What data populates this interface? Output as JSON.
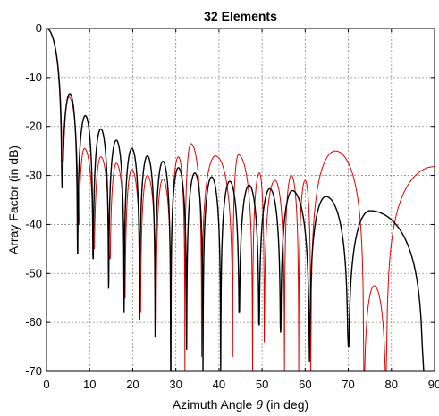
{
  "chart_data": {
    "type": "line",
    "title": "32 Elements",
    "xlabel_prefix": "Azimuth Angle ",
    "xlabel_symbol": "θ",
    "xlabel_suffix": " (in deg)",
    "ylabel": "Array Factor (in dB)",
    "xlim": [
      0,
      90
    ],
    "ylim": [
      -70,
      0
    ],
    "xticks": [
      "0",
      "10",
      "20",
      "30",
      "40",
      "50",
      "60",
      "70",
      "80",
      "90"
    ],
    "yticks": [
      "0",
      "-10",
      "-20",
      "-30",
      "-40",
      "-50",
      "-60",
      "-70"
    ],
    "grid": true,
    "series": [
      {
        "color": "#000000",
        "peaks": [
          [
            0,
            0
          ],
          [
            5.4,
            -13.3
          ],
          [
            9.0,
            -17.8
          ],
          [
            12.6,
            -20.5
          ],
          [
            16.2,
            -22.8
          ],
          [
            19.8,
            -24.5
          ],
          [
            23.4,
            -26.0
          ],
          [
            27.0,
            -27.1
          ],
          [
            30.6,
            -28.4
          ],
          [
            34.4,
            -29.5
          ],
          [
            38.3,
            -30.3
          ],
          [
            42.5,
            -31.2
          ],
          [
            47.0,
            -32.0
          ],
          [
            51.8,
            -32.7
          ],
          [
            57.0,
            -33.1
          ],
          [
            64.8,
            -34.3
          ],
          [
            75.0,
            -37.2
          ]
        ],
        "nulls": [
          3.6,
          7.2,
          10.8,
          14.4,
          18.0,
          21.6,
          25.2,
          28.8,
          32.5,
          36.3,
          40.4,
          44.7,
          49.3,
          54.3,
          61.0,
          70.0,
          87.5
        ],
        "null_depths": [
          -32.5,
          -46,
          -47,
          -53,
          -58,
          -59.5,
          -63,
          -70,
          -65.5,
          -70,
          -70,
          -58,
          -60.5,
          -62,
          -68,
          -65,
          -70
        ]
      },
      {
        "color": "#e00000",
        "peaks": [
          [
            0,
            0
          ],
          [
            5.2,
            -14.0
          ],
          [
            8.8,
            -24.5
          ],
          [
            12.6,
            -26.2
          ],
          [
            16.2,
            -27.5
          ],
          [
            19.8,
            -28.8
          ],
          [
            23.4,
            -30.0
          ],
          [
            27.0,
            -30.7
          ],
          [
            30.6,
            -26.2
          ],
          [
            33.5,
            -23.5
          ],
          [
            39.2,
            -26.0
          ],
          [
            44.5,
            -25.8
          ],
          [
            49.4,
            -29.5
          ],
          [
            53.0,
            -31.0
          ],
          [
            56.8,
            -30.0
          ],
          [
            60.0,
            -31.0
          ],
          [
            67.0,
            -25.0
          ],
          [
            76.0,
            -52.5
          ],
          [
            90.0,
            -28.2
          ]
        ],
        "nulls": [
          3.7,
          7.4,
          11.0,
          14.7,
          18.2,
          21.8,
          25.4,
          28.9,
          32.1,
          36.0,
          43.2,
          47.8,
          50.5,
          55.2,
          58.5,
          61.3,
          73.6,
          78.8
        ],
        "null_depths": [
          -27,
          -40,
          -45,
          -47,
          -55,
          -58,
          -62,
          -70,
          -70,
          -67,
          -67,
          -70,
          -64,
          -70,
          -70,
          -70,
          -70,
          -70
        ]
      }
    ]
  }
}
